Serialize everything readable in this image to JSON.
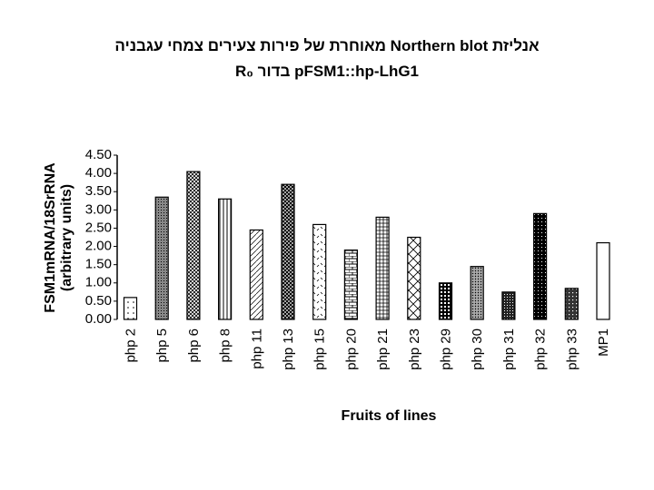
{
  "chart_data": {
    "type": "bar",
    "title": "אנליזת Northern blot מאוחרת של פירות צעירים צמחי עגבניה",
    "subtitle": "pFSM1::hp-LhG1 בדור R₀",
    "y_label": [
      "FSM1mRNA/18SrRNA",
      "(arbitrary units)"
    ],
    "x_label": "Fruits of lines",
    "categories": [
      "php 2",
      "php 5",
      "php 6",
      "php 8",
      "php 11",
      "php 13",
      "php 15",
      "php 20",
      "php 21",
      "php 23",
      "php 29",
      "php 30",
      "php 31",
      "php 32",
      "php 33",
      "MP1"
    ],
    "values": [
      0.6,
      3.35,
      4.05,
      3.3,
      2.45,
      3.7,
      2.6,
      1.9,
      2.8,
      2.25,
      1.0,
      1.45,
      0.75,
      2.9,
      0.85,
      2.1
    ],
    "ylim": [
      0,
      4.5
    ],
    "yticks": [
      {
        "value": 0,
        "label": "0.00"
      },
      {
        "value": 0.5,
        "label": "0.50"
      },
      {
        "value": 1,
        "label": "1.00"
      },
      {
        "value": 1.5,
        "label": "1.50"
      },
      {
        "value": 2,
        "label": "2.00"
      },
      {
        "value": 2.5,
        "label": "2.50"
      },
      {
        "value": 3,
        "label": "3.00"
      },
      {
        "value": 3.5,
        "label": "3.50"
      },
      {
        "value": 4,
        "label": "4.00"
      },
      {
        "value": 4.5,
        "label": "4.50"
      }
    ],
    "color": "#000000"
  }
}
